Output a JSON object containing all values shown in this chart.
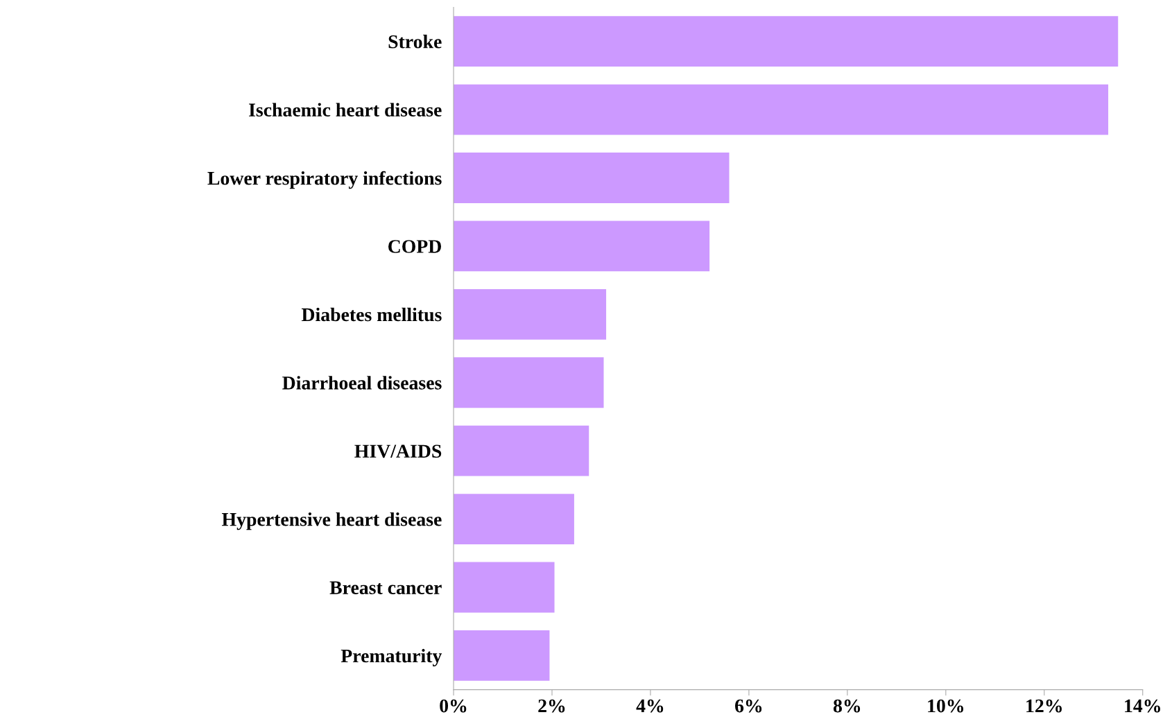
{
  "chart_data": {
    "type": "bar",
    "orientation": "horizontal",
    "categories": [
      "Stroke",
      "Ischaemic heart disease",
      "Lower respiratory infections",
      "COPD",
      "Diabetes mellitus",
      "Diarrhoeal diseases",
      "HIV/AIDS",
      "Hypertensive heart disease",
      "Breast cancer",
      "Prematurity"
    ],
    "values": [
      13.5,
      13.3,
      5.6,
      5.2,
      3.1,
      3.05,
      2.75,
      2.45,
      2.05,
      1.95
    ],
    "color": "#cc99ff",
    "xlim": [
      0,
      14
    ],
    "xticks": [
      {
        "value": 0,
        "label": "0%"
      },
      {
        "value": 2,
        "label": "2%"
      },
      {
        "value": 4,
        "label": "4%"
      },
      {
        "value": 6,
        "label": "6%"
      },
      {
        "value": 8,
        "label": "8%"
      },
      {
        "value": 10,
        "label": "10%"
      },
      {
        "value": 12,
        "label": "12%"
      },
      {
        "value": 14,
        "label": "14%"
      }
    ],
    "grid": false,
    "legend": false
  }
}
